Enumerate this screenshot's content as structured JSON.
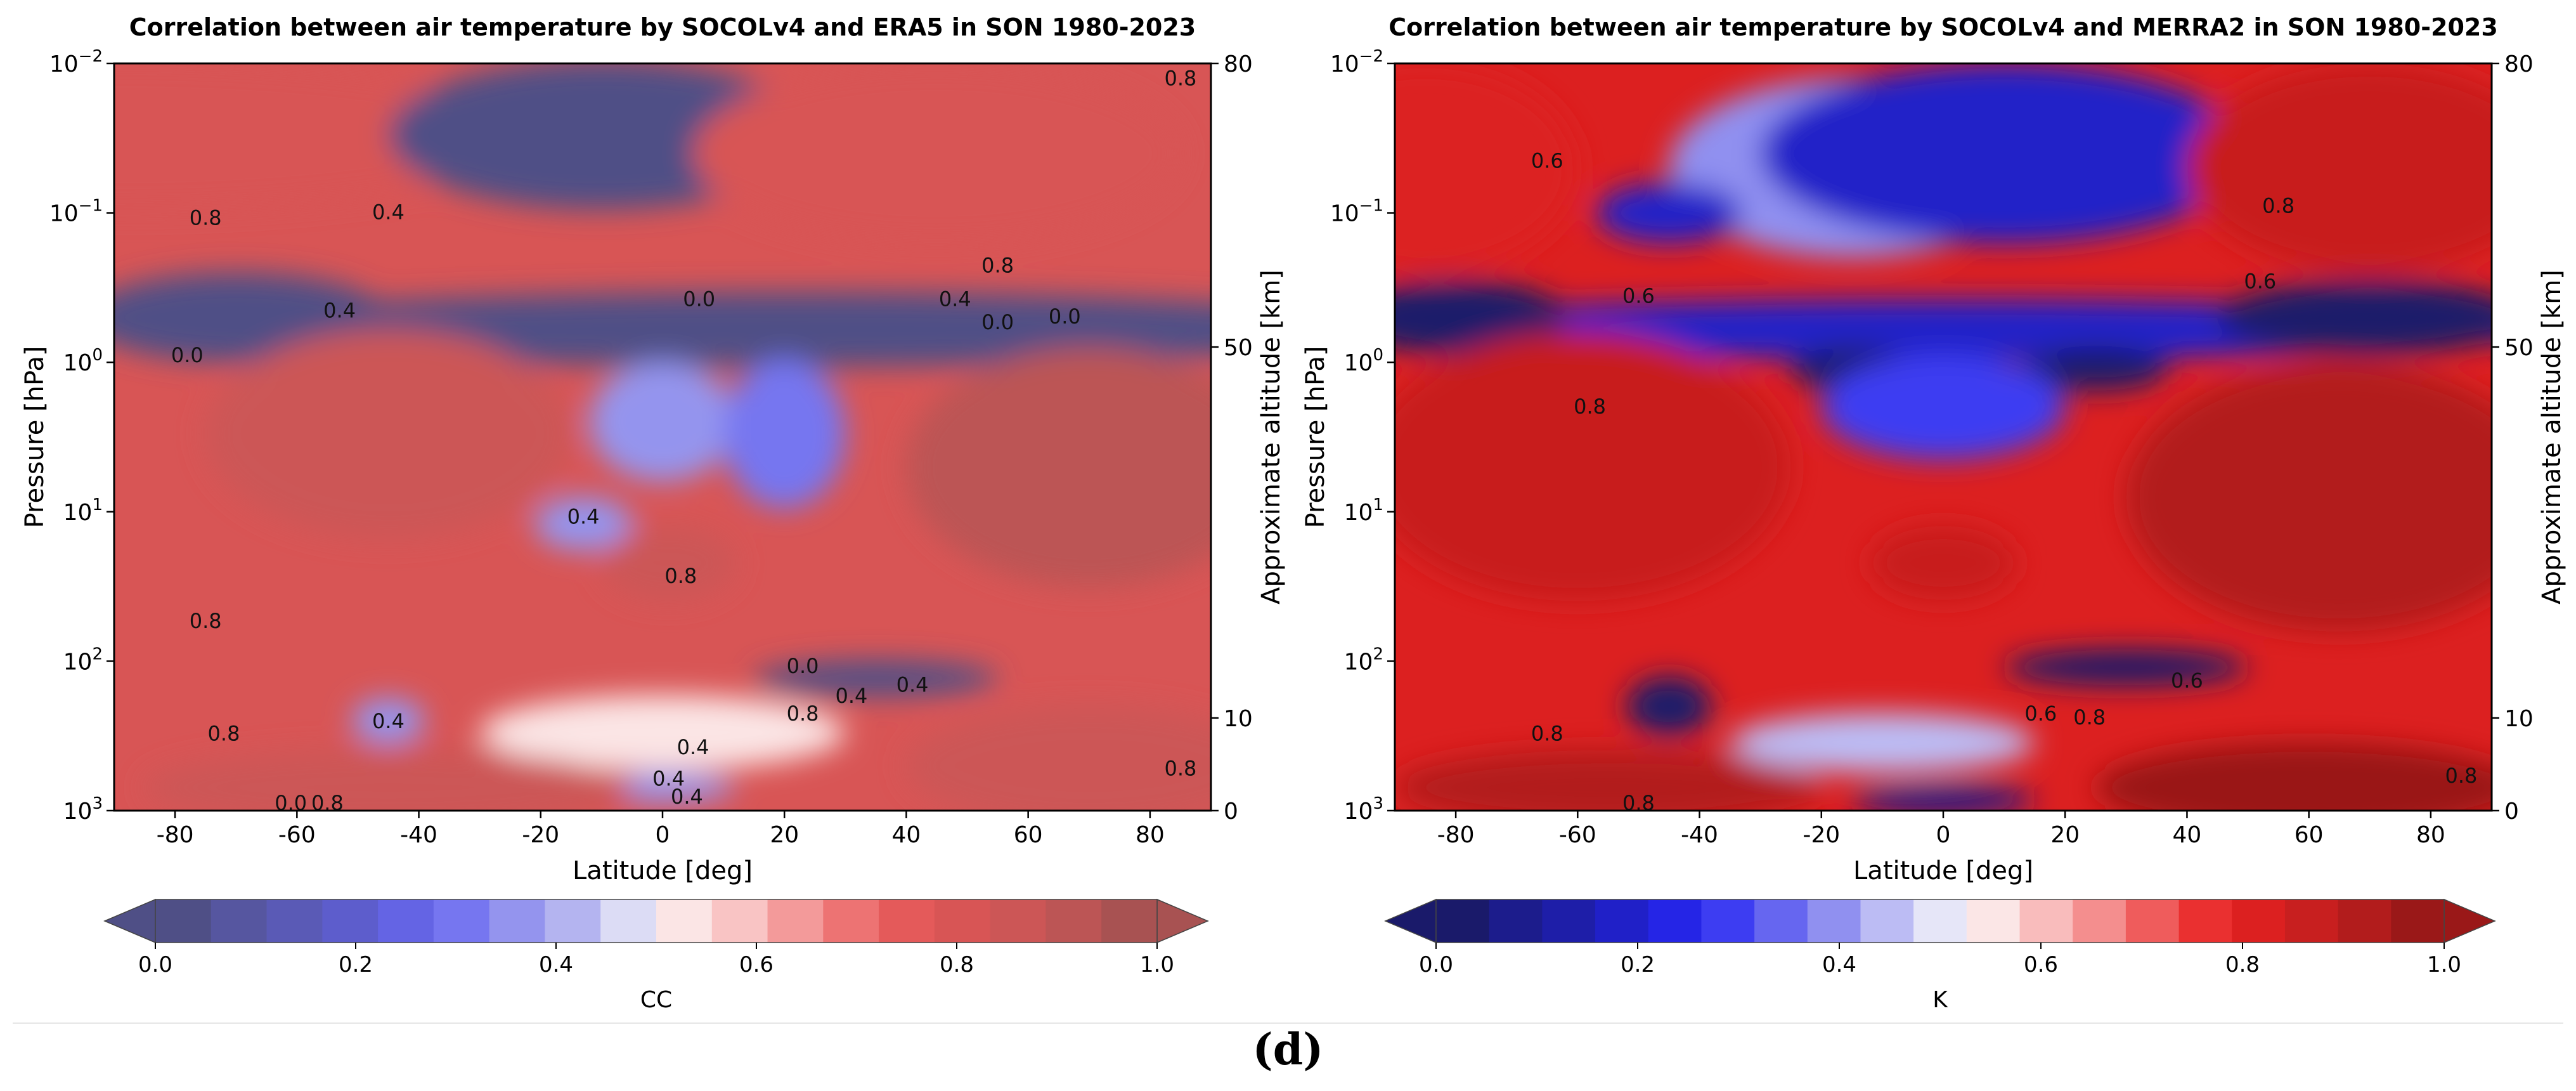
{
  "figure_label": "(d)",
  "chart_data": [
    {
      "type": "heatmap",
      "title": "Correlation between air temperature by SOCOLv4 and ERA5 in SON 1980-2023",
      "xlabel": "Latitude [deg]",
      "ylabel": "Pressure [hPa]",
      "y2label": "Approximate altitude [km]",
      "xlim": [
        -90,
        90
      ],
      "ylim_hpa": [
        1000,
        0.01
      ],
      "y_scale": "log",
      "x_ticks": [
        "-80",
        "-60",
        "-40",
        "-20",
        "0",
        "20",
        "40",
        "60",
        "80"
      ],
      "x_tick_values": [
        -80,
        -60,
        -40,
        -20,
        0,
        20,
        40,
        60,
        80
      ],
      "y_ticks": [
        {
          "base": "10",
          "exp": "−2",
          "p": 0.01
        },
        {
          "base": "10",
          "exp": "−1",
          "p": 0.1
        },
        {
          "base": "10",
          "exp": "0",
          "p": 1
        },
        {
          "base": "10",
          "exp": "1",
          "p": 10
        },
        {
          "base": "10",
          "exp": "2",
          "p": 100
        },
        {
          "base": "10",
          "exp": "3",
          "p": 1000
        }
      ],
      "y2_ticks": [
        {
          "label": "80",
          "km": 80
        },
        {
          "label": "50",
          "km": 50
        },
        {
          "label": "10",
          "km": 10
        },
        {
          "label": "0",
          "km": 0
        }
      ],
      "colorbar": {
        "label": "CC",
        "min": 0.0,
        "max": 1.0,
        "ticks": [
          "0.0",
          "0.2",
          "0.4",
          "0.6",
          "0.8",
          "1.0"
        ],
        "tick_values": [
          0.0,
          0.2,
          0.4,
          0.6,
          0.8,
          1.0
        ],
        "colors": [
          "#4f4f86",
          "#5656a0",
          "#5a5ab6",
          "#5d5dcc",
          "#6464e4",
          "#7676f0",
          "#9494ee",
          "#b4b4f0",
          "#dcdcf5",
          "#fbe5e5",
          "#f9c4c4",
          "#f39a9a",
          "#ed7373",
          "#e45a5a",
          "#d85555",
          "#cc5656",
          "#bc5555",
          "#a85252"
        ]
      },
      "contour_labels": [
        {
          "text": "0.8",
          "lat": -75,
          "p": 0.12
        },
        {
          "text": "0.4",
          "lat": -45,
          "p": 0.11
        },
        {
          "text": "0.4",
          "lat": -53,
          "p": 0.5
        },
        {
          "text": "0.0",
          "lat": -78,
          "p": 1.0
        },
        {
          "text": "0.0",
          "lat": 6,
          "p": 0.42
        },
        {
          "text": "0.8",
          "lat": 55,
          "p": 0.25
        },
        {
          "text": "0.4",
          "lat": 48,
          "p": 0.42
        },
        {
          "text": "0.0",
          "lat": 55,
          "p": 0.6
        },
        {
          "text": "0.0",
          "lat": 66,
          "p": 0.55
        },
        {
          "text": "0.8",
          "lat": 85,
          "p": 0.014
        },
        {
          "text": "0.4",
          "lat": -13,
          "p": 12
        },
        {
          "text": "0.8",
          "lat": 3,
          "p": 30
        },
        {
          "text": "0.8",
          "lat": -75,
          "p": 60
        },
        {
          "text": "0.0",
          "lat": 23,
          "p": 120
        },
        {
          "text": "0.4",
          "lat": 31,
          "p": 190
        },
        {
          "text": "0.4",
          "lat": 41,
          "p": 160
        },
        {
          "text": "0.8",
          "lat": 23,
          "p": 250
        },
        {
          "text": "0.4",
          "lat": -45,
          "p": 280
        },
        {
          "text": "0.8",
          "lat": -72,
          "p": 340
        },
        {
          "text": "0.4",
          "lat": 5,
          "p": 420
        },
        {
          "text": "0.4",
          "lat": 1,
          "p": 680
        },
        {
          "text": "0.4",
          "lat": 4,
          "p": 900
        },
        {
          "text": "0.8",
          "lat": 85,
          "p": 580
        },
        {
          "text": "0.0",
          "lat": -61,
          "p": 990
        },
        {
          "text": "0.8",
          "lat": -55,
          "p": 990
        }
      ],
      "blobs": [
        {
          "lat": -90,
          "p": 0.03,
          "rx": 70,
          "ry": 0.5,
          "v": 0.82
        },
        {
          "lat": -10,
          "p": 0.03,
          "rx": 35,
          "ry": 0.5,
          "v": 0.05
        },
        {
          "lat": 45,
          "p": 0.04,
          "rx": 40,
          "ry": 0.6,
          "v": 0.83
        },
        {
          "lat": 20,
          "p": 0.6,
          "rx": 100,
          "ry": 0.25,
          "v": 0.02
        },
        {
          "lat": -70,
          "p": 0.5,
          "rx": 25,
          "ry": 0.3,
          "v": 0.0
        },
        {
          "lat": -45,
          "p": 3,
          "rx": 30,
          "ry": 0.7,
          "v": 0.88
        },
        {
          "lat": 70,
          "p": 5,
          "rx": 30,
          "ry": 0.8,
          "v": 0.9
        },
        {
          "lat": 0,
          "p": 2.5,
          "rx": 12,
          "ry": 0.4,
          "v": 0.38
        },
        {
          "lat": 20,
          "p": 3,
          "rx": 10,
          "ry": 0.5,
          "v": 0.3
        },
        {
          "lat": -13,
          "p": 12,
          "rx": 8,
          "ry": 0.18,
          "v": 0.38
        },
        {
          "lat": 1,
          "p": 22,
          "rx": 11,
          "ry": 0.25,
          "v": 0.88
        },
        {
          "lat": 35,
          "p": 130,
          "rx": 20,
          "ry": 0.12,
          "v": 0.05
        },
        {
          "lat": -45,
          "p": 250,
          "rx": 6,
          "ry": 0.15,
          "v": 0.35
        },
        {
          "lat": 0,
          "p": 300,
          "rx": 30,
          "ry": 0.25,
          "v": 0.55
        },
        {
          "lat": 0,
          "p": 700,
          "rx": 12,
          "ry": 0.1,
          "v": 0.35
        },
        {
          "lat": -45,
          "p": 700,
          "rx": 40,
          "ry": 0.25,
          "v": 0.86
        },
        {
          "lat": 70,
          "p": 500,
          "rx": 30,
          "ry": 0.4,
          "v": 0.88
        }
      ],
      "background": 0.78
    },
    {
      "type": "heatmap",
      "title": "Correlation between air temperature by SOCOLv4 and MERRA2 in SON 1980-2023",
      "xlabel": "Latitude [deg]",
      "ylabel": "Pressure [hPa]",
      "y2label": "Approximate altitude [km]",
      "xlim": [
        -90,
        90
      ],
      "ylim_hpa": [
        1000,
        0.01
      ],
      "y_scale": "log",
      "x_ticks": [
        "-80",
        "-60",
        "-40",
        "-20",
        "0",
        "20",
        "40",
        "60",
        "80"
      ],
      "x_tick_values": [
        -80,
        -60,
        -40,
        -20,
        0,
        20,
        40,
        60,
        80
      ],
      "y_ticks": [
        {
          "base": "10",
          "exp": "−2",
          "p": 0.01
        },
        {
          "base": "10",
          "exp": "−1",
          "p": 0.1
        },
        {
          "base": "10",
          "exp": "0",
          "p": 1
        },
        {
          "base": "10",
          "exp": "1",
          "p": 10
        },
        {
          "base": "10",
          "exp": "2",
          "p": 100
        },
        {
          "base": "10",
          "exp": "3",
          "p": 1000
        }
      ],
      "y2_ticks": [
        {
          "label": "80",
          "km": 80
        },
        {
          "label": "50",
          "km": 50
        },
        {
          "label": "10",
          "km": 10
        },
        {
          "label": "0",
          "km": 0
        }
      ],
      "colorbar": {
        "label": "K",
        "min": 0.0,
        "max": 1.0,
        "ticks": [
          "0.0",
          "0.2",
          "0.4",
          "0.6",
          "0.8",
          "1.0"
        ],
        "tick_values": [
          0.0,
          0.2,
          0.4,
          0.6,
          0.8,
          1.0
        ],
        "colors": [
          "#1a1a6a",
          "#1c1c8c",
          "#1e1ea8",
          "#2020c8",
          "#2525e6",
          "#3d3df2",
          "#6666f0",
          "#9090f0",
          "#bcbcf4",
          "#e6e6f8",
          "#fbe6e6",
          "#f9bcbc",
          "#f48e8e",
          "#ef5c5c",
          "#ea3030",
          "#dc2020",
          "#c81f1f",
          "#b21c1c",
          "#9a1818"
        ]
      },
      "contour_labels": [
        {
          "text": "0.6",
          "lat": -65,
          "p": 0.05
        },
        {
          "text": "0.8",
          "lat": 55,
          "p": 0.1
        },
        {
          "text": "0.6",
          "lat": 52,
          "p": 0.32
        },
        {
          "text": "0.6",
          "lat": -50,
          "p": 0.4
        },
        {
          "text": "0.8",
          "lat": -58,
          "p": 2.2
        },
        {
          "text": "0.6",
          "lat": 16,
          "p": 250
        },
        {
          "text": "0.8",
          "lat": 24,
          "p": 265
        },
        {
          "text": "0.6",
          "lat": 40,
          "p": 150
        },
        {
          "text": "0.8",
          "lat": -65,
          "p": 340
        },
        {
          "text": "0.8",
          "lat": -50,
          "p": 990
        },
        {
          "text": "0.8",
          "lat": 85,
          "p": 650
        }
      ],
      "blobs": [
        {
          "lat": -15,
          "p": 0.05,
          "rx": 30,
          "ry": 0.6,
          "v": 0.42
        },
        {
          "lat": 10,
          "p": 0.04,
          "rx": 40,
          "ry": 0.6,
          "v": 0.2
        },
        {
          "lat": 70,
          "p": 0.05,
          "rx": 30,
          "ry": 0.7,
          "v": 0.86
        },
        {
          "lat": -85,
          "p": 0.05,
          "rx": 25,
          "ry": 0.7,
          "v": 0.82
        },
        {
          "lat": -45,
          "p": 0.1,
          "rx": 12,
          "ry": 0.2,
          "v": 0.2
        },
        {
          "lat": 0,
          "p": 0.6,
          "rx": 100,
          "ry": 0.2,
          "v": 0.18
        },
        {
          "lat": -80,
          "p": 0.5,
          "rx": 18,
          "ry": 0.25,
          "v": 0.0
        },
        {
          "lat": 70,
          "p": 0.5,
          "rx": 25,
          "ry": 0.25,
          "v": 0.0
        },
        {
          "lat": -15,
          "p": 1.1,
          "rx": 10,
          "ry": 0.15,
          "v": 0.05
        },
        {
          "lat": 25,
          "p": 1.1,
          "rx": 12,
          "ry": 0.15,
          "v": 0.05
        },
        {
          "lat": 0,
          "p": 2,
          "rx": 20,
          "ry": 0.35,
          "v": 0.3
        },
        {
          "lat": -60,
          "p": 5,
          "rx": 35,
          "ry": 0.9,
          "v": 0.87
        },
        {
          "lat": 65,
          "p": 8,
          "rx": 35,
          "ry": 0.9,
          "v": 0.92
        },
        {
          "lat": 0,
          "p": 22,
          "rx": 12,
          "ry": 0.25,
          "v": 0.88
        },
        {
          "lat": 30,
          "p": 110,
          "rx": 20,
          "ry": 0.12,
          "v": 0.02
        },
        {
          "lat": -45,
          "p": 200,
          "rx": 7,
          "ry": 0.2,
          "v": 0.05
        },
        {
          "lat": -10,
          "p": 350,
          "rx": 25,
          "ry": 0.2,
          "v": 0.45
        },
        {
          "lat": 0,
          "p": 850,
          "rx": 15,
          "ry": 0.1,
          "v": 0.1
        },
        {
          "lat": -55,
          "p": 700,
          "rx": 35,
          "ry": 0.25,
          "v": 0.9
        },
        {
          "lat": 60,
          "p": 700,
          "rx": 35,
          "ry": 0.3,
          "v": 0.95
        }
      ],
      "background": 0.82
    }
  ]
}
